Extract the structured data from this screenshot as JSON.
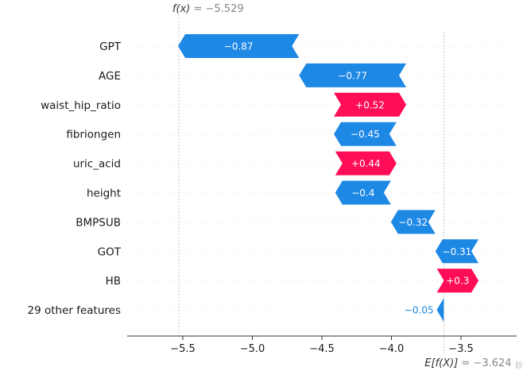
{
  "chart_data": {
    "type": "waterfall",
    "fx_label": "f(x)",
    "fx_value_text": " = −5.529",
    "ex_label": "E[f(X)]",
    "ex_value_text": " = −3.624",
    "fx": -5.529,
    "ex": -3.624,
    "xlim": [
      -5.9,
      -3.1
    ],
    "xticks": [
      -5.5,
      -5.0,
      -4.5,
      -4.0,
      -3.5
    ],
    "xtick_labels": [
      "−5.5",
      "−5.0",
      "−4.5",
      "−4.0",
      "−3.5"
    ],
    "features": [
      {
        "name": "GPT",
        "value": -0.87,
        "label": "−0.87"
      },
      {
        "name": "AGE",
        "value": -0.77,
        "label": "−0.77"
      },
      {
        "name": "waist_hip_ratio",
        "value": 0.52,
        "label": "+0.52"
      },
      {
        "name": "fibriongen",
        "value": -0.45,
        "label": "−0.45"
      },
      {
        "name": "uric_acid",
        "value": 0.44,
        "label": "+0.44"
      },
      {
        "name": "height",
        "value": -0.4,
        "label": "−0.4"
      },
      {
        "name": "BMPSUB",
        "value": -0.32,
        "label": "−0.32"
      },
      {
        "name": "GOT",
        "value": -0.31,
        "label": "−0.31"
      },
      {
        "name": "HB",
        "value": 0.3,
        "label": "+0.3"
      },
      {
        "name": "29 other features",
        "value": -0.05,
        "label": "−0.05"
      }
    ],
    "colors": {
      "negative": "#1e88e5",
      "positive": "#ff0d57",
      "text": "#1a1a1a",
      "muted": "#888888",
      "grid": "#d9d9d9"
    },
    "grid": true
  }
}
